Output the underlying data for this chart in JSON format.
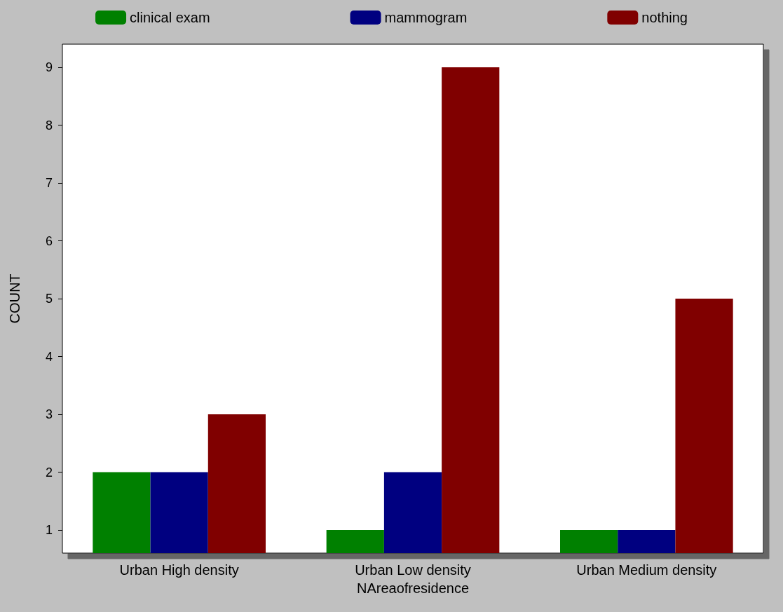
{
  "chart_data": {
    "type": "bar",
    "xlabel": "NAreaofresidence",
    "ylabel": "COUNT",
    "categories": [
      "Urban High density",
      "Urban Low density",
      "Urban Medium density"
    ],
    "series": [
      {
        "name": "clinical exam",
        "color": "#008000",
        "values": [
          2,
          1,
          1
        ]
      },
      {
        "name": "mammogram",
        "color": "#000080",
        "values": [
          2,
          2,
          1
        ]
      },
      {
        "name": "nothing",
        "color": "#800000",
        "values": [
          3,
          9,
          5
        ]
      }
    ],
    "ylim": [
      0.6,
      9.4
    ],
    "yticks": [
      1,
      2,
      3,
      4,
      5,
      6,
      7,
      8,
      9
    ],
    "grid": false,
    "legend": "top"
  }
}
